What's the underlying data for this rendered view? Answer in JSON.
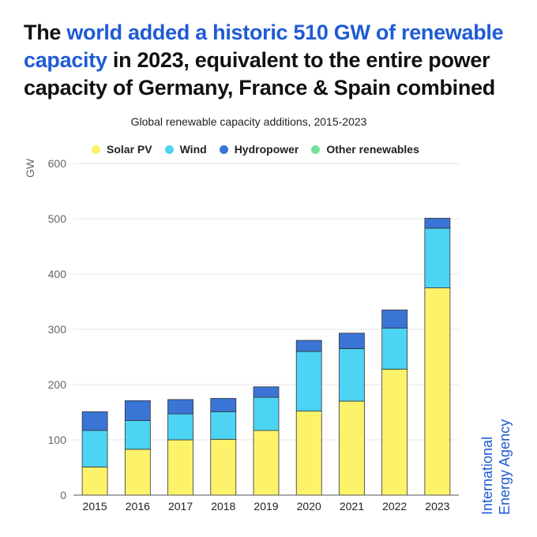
{
  "headline": {
    "part1": "The ",
    "part2": "world added a historic 510 GW of renewable capacity",
    "part3": " in 2023, equivalent to the entire power capacity of Germany, France & Spain combined"
  },
  "colors": {
    "highlight": "#1f5bd6",
    "logo": "#1f5bd6"
  },
  "logo": {
    "line1": "International",
    "line2": "Energy Agency"
  },
  "chart_data": {
    "type": "bar",
    "stacked": true,
    "title": "Global renewable capacity additions, 2015-2023",
    "ylabel": "GW",
    "xlabel": "",
    "ylim": [
      0,
      600
    ],
    "yticks": [
      0,
      100,
      200,
      300,
      400,
      500,
      600
    ],
    "grid": true,
    "legend_position": "top",
    "categories": [
      "2015",
      "2016",
      "2017",
      "2018",
      "2019",
      "2020",
      "2021",
      "2022",
      "2023"
    ],
    "series": [
      {
        "name": "Solar PV",
        "color": "#fdf36a",
        "values": [
          51,
          83,
          100,
          101,
          117,
          152,
          170,
          228,
          375
        ]
      },
      {
        "name": "Wind",
        "color": "#4dd3f4",
        "values": [
          66,
          52,
          47,
          50,
          60,
          108,
          95,
          74,
          108
        ]
      },
      {
        "name": "Hydropower",
        "color": "#3a74d4",
        "values": [
          34,
          36,
          26,
          24,
          19,
          20,
          28,
          33,
          18
        ]
      },
      {
        "name": "Other renewables",
        "color": "#6fe39a",
        "values": [
          0,
          0,
          0,
          0,
          0,
          0,
          0,
          0,
          0
        ]
      }
    ]
  }
}
